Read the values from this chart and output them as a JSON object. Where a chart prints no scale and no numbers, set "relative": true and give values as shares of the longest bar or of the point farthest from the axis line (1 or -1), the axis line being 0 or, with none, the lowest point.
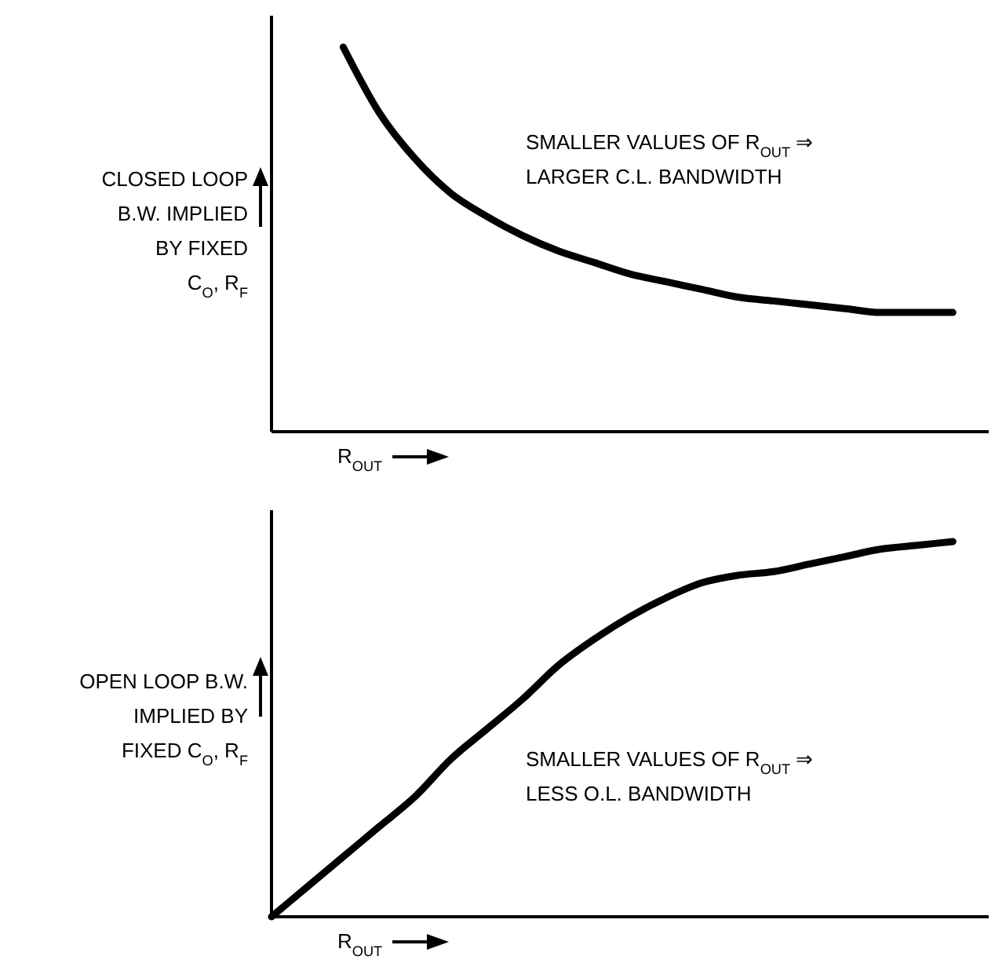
{
  "chart_data": [
    {
      "type": "line",
      "relative": true,
      "color": "#000000",
      "ylabel": "CLOSED LOOP\nB.W. IMPLIED\nBY FIXED\nC$_{O}$, R$_{F}$",
      "xlabel": "R$_{OUT}$",
      "annotations": [
        "SMALLER VALUES OF R$_{OUT}$ ⇒",
        "LARGER C.L. BANDWIDTH"
      ],
      "categories": [
        null,
        null,
        null,
        null,
        null,
        null,
        null,
        null,
        null,
        null,
        null,
        null,
        null,
        null,
        null,
        null,
        null,
        null,
        null,
        null,
        null
      ],
      "values": [
        null,
        null,
        1,
        0.83,
        0.71,
        0.62,
        0.56,
        0.51,
        0.47,
        0.44,
        0.41,
        0.39,
        0.37,
        0.35,
        0.34,
        0.33,
        0.32,
        0.31,
        0.31,
        0.31,
        null
      ]
    },
    {
      "type": "line",
      "relative": true,
      "color": "#000000",
      "ylabel": "OPEN LOOP B.W.\nIMPLIED BY\nFIXED C$_{O}$, R$_{F}$",
      "xlabel": "R$_{OUT}$",
      "annotations": [
        "SMALLER VALUES OF R$_{OUT}$ ⇒",
        "LESS O.L. BANDWIDTH"
      ],
      "categories": [
        null,
        null,
        null,
        null,
        null,
        null,
        null,
        null,
        null,
        null,
        null,
        null,
        null,
        null,
        null,
        null,
        null,
        null,
        null,
        null,
        null
      ],
      "values": [
        0,
        0.08,
        0.16,
        0.24,
        0.32,
        0.42,
        0.5,
        0.58,
        0.67,
        0.74,
        0.8,
        0.85,
        0.89,
        0.91,
        0.92,
        0.94,
        0.96,
        0.98,
        0.99,
        1,
        null
      ]
    }
  ]
}
